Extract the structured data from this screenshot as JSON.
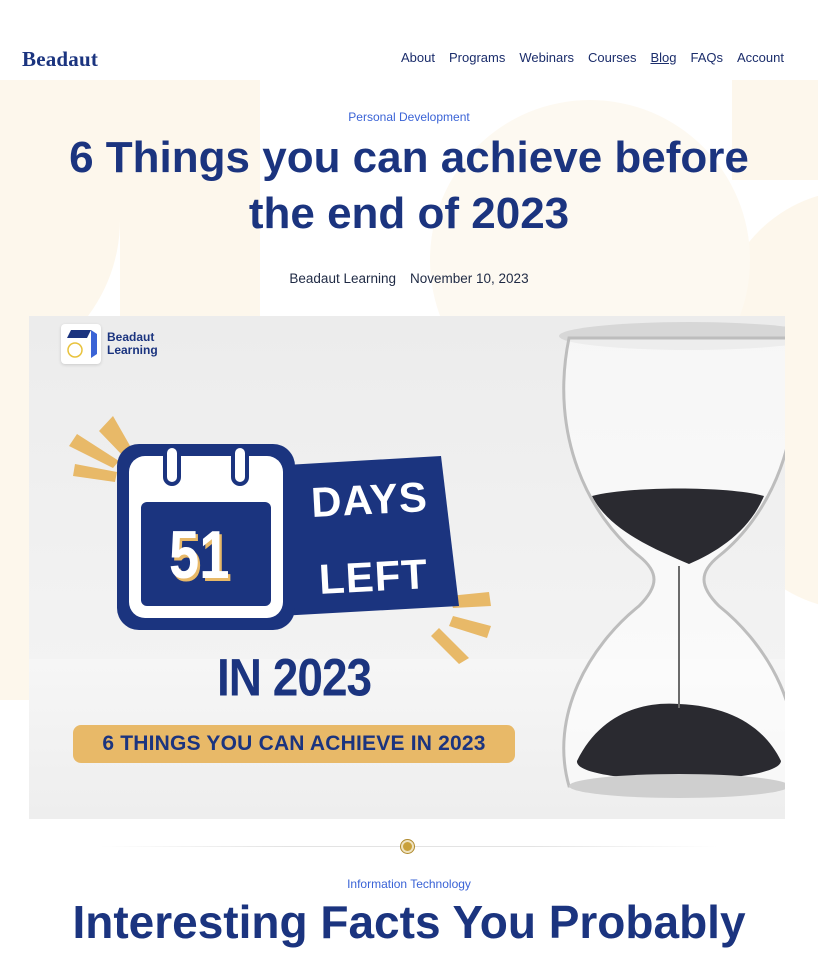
{
  "header": {
    "logo": "Beadaut",
    "nav": [
      {
        "label": "About",
        "active": false
      },
      {
        "label": "Programs",
        "active": false
      },
      {
        "label": "Webinars",
        "active": false
      },
      {
        "label": "Courses",
        "active": false
      },
      {
        "label": "Blog",
        "active": true
      },
      {
        "label": "FAQs",
        "active": false
      },
      {
        "label": "Account",
        "active": false
      }
    ]
  },
  "article1": {
    "category": "Personal Development",
    "title": "6 Things you can achieve before the end of 2023",
    "author": "Beadaut Learning",
    "date": "November 10, 2023",
    "image": {
      "brand_line1": "Beadaut",
      "brand_line2": "Learning",
      "number": "51",
      "days": "DAYS",
      "left": "LEFT",
      "in_year": "IN 2023",
      "banner": "6 THINGS YOU CAN ACHIEVE IN 2023"
    }
  },
  "article2": {
    "category": "Information Technology",
    "title": "Interesting Facts You Probably"
  },
  "colors": {
    "brand_navy": "#1b347f",
    "accent_gold": "#e8b968",
    "link_blue": "#3a63d6",
    "hero_cream": "#fdf7ec"
  }
}
